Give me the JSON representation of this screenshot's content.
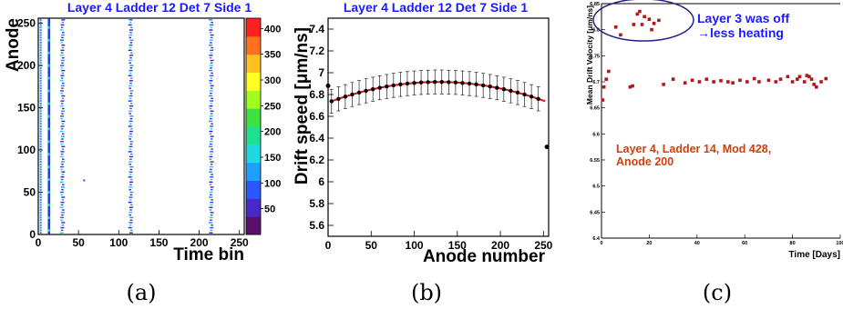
{
  "panels": {
    "a": {
      "caption": "(a)"
    },
    "b": {
      "caption": "(b)"
    },
    "c": {
      "caption": "(c)"
    }
  },
  "chart_data": [
    {
      "type": "heatmap",
      "title": "Layer 4 Ladder 12 Det 7 Side 1",
      "xlabel": "Time bin",
      "ylabel": "Anode",
      "xlim": [
        0,
        256
      ],
      "ylim": [
        0,
        256
      ],
      "xticks": [
        "0",
        "50",
        "100",
        "150",
        "200",
        "250"
      ],
      "yticks": [
        "0",
        "50",
        "100",
        "150",
        "200",
        "250"
      ],
      "colorbar": {
        "range": [
          0,
          420
        ],
        "ticks": [
          "50",
          "100",
          "150",
          "200",
          "250",
          "300",
          "350",
          "400"
        ]
      },
      "pulse_columns": [
        3,
        13,
        30,
        115,
        215
      ],
      "stray_point": {
        "x": 57,
        "y": 64
      }
    },
    {
      "type": "scatter",
      "title": "Layer 4 Ladder 12 Det 7 Side 1",
      "xlabel": "Anode number",
      "ylabel": "Drift speed [μm/ns]",
      "xlim": [
        0,
        256
      ],
      "ylim": [
        5.5,
        7.5
      ],
      "xticks": [
        "0",
        "50",
        "100",
        "150",
        "200",
        "250"
      ],
      "yticks": [
        "5.6",
        "5.8",
        "6",
        "6.2",
        "6.4",
        "6.6",
        "6.8",
        "7",
        "7.2",
        "7.4"
      ],
      "fit": {
        "a": 6.915,
        "center": 128,
        "curvature": 1.15e-05
      },
      "error": 0.11,
      "outliers": [
        {
          "x": 0,
          "y": 6.88
        },
        {
          "x": 254,
          "y": 6.32
        }
      ]
    },
    {
      "type": "scatter",
      "xlabel": "Time [Days]",
      "ylabel": "Mean Drift Velocity [μm/ns]",
      "xlim": [
        0,
        100
      ],
      "ylim": [
        6.4,
        6.85
      ],
      "yticks": [
        "6.4",
        "6.45",
        "6.5",
        "6.55",
        "6.6",
        "6.65",
        "6.7",
        "6.75",
        "6.8",
        "6.85"
      ],
      "xticks": [
        "0",
        "20",
        "40",
        "60",
        "80",
        "100"
      ],
      "annotation_off": "Layer 3 was off\n→less heating",
      "annotation_label": "Layer 4, Ladder 14, Mod 428,\nAnode 200",
      "points": [
        [
          0.5,
          6.665
        ],
        [
          1,
          6.69
        ],
        [
          2,
          6.705
        ],
        [
          3,
          6.72
        ],
        [
          6,
          6.805
        ],
        [
          8,
          6.79
        ],
        [
          12,
          6.69
        ],
        [
          13,
          6.692
        ],
        [
          13.5,
          6.81
        ],
        [
          15,
          6.83
        ],
        [
          16,
          6.835
        ],
        [
          17,
          6.81
        ],
        [
          18,
          6.825
        ],
        [
          20,
          6.82
        ],
        [
          21,
          6.8
        ],
        [
          22,
          6.812
        ],
        [
          24,
          6.818
        ],
        [
          26,
          6.695
        ],
        [
          30,
          6.705
        ],
        [
          35,
          6.698
        ],
        [
          38,
          6.703
        ],
        [
          41,
          6.7
        ],
        [
          44,
          6.705
        ],
        [
          47,
          6.7
        ],
        [
          50,
          6.702
        ],
        [
          53,
          6.7
        ],
        [
          55,
          6.698
        ],
        [
          58,
          6.703
        ],
        [
          61,
          6.7
        ],
        [
          64,
          6.706
        ],
        [
          66,
          6.7
        ],
        [
          70,
          6.703
        ],
        [
          73,
          6.7
        ],
        [
          75,
          6.705
        ],
        [
          78,
          6.71
        ],
        [
          80,
          6.7
        ],
        [
          82,
          6.705
        ],
        [
          83,
          6.71
        ],
        [
          85,
          6.7
        ],
        [
          86,
          6.712
        ],
        [
          87,
          6.71
        ],
        [
          88,
          6.705
        ],
        [
          89,
          6.695
        ],
        [
          90,
          6.69
        ],
        [
          92,
          6.7
        ],
        [
          94,
          6.706
        ]
      ]
    }
  ]
}
